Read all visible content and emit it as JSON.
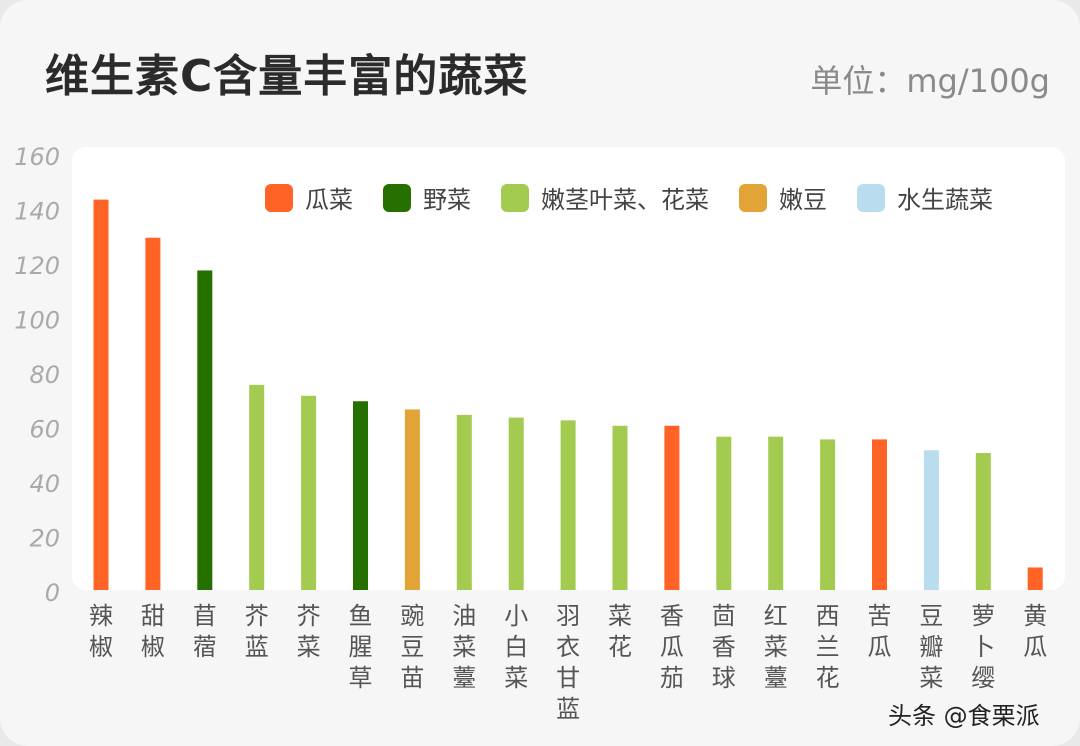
{
  "title": "维生素C含量丰富的蔬菜",
  "unit": "单位：mg/100g",
  "watermark": "头条 @食栗派",
  "chart_data": {
    "type": "bar",
    "title": "维生素C含量丰富的蔬菜",
    "ylabel": "单位：mg/100g",
    "ylim": [
      0,
      160
    ],
    "yticks": [
      0,
      20,
      40,
      60,
      80,
      100,
      120,
      140,
      160
    ],
    "grid": false,
    "legend_position": "top-right",
    "legend": [
      {
        "name": "瓜菜",
        "color": "#ff6325"
      },
      {
        "name": "野菜",
        "color": "#267000"
      },
      {
        "name": "嫩茎叶菜、花菜",
        "color": "#a3cb4f"
      },
      {
        "name": "嫩豆",
        "color": "#e2a436"
      },
      {
        "name": "水生蔬菜",
        "color": "#b9dcee"
      }
    ],
    "categories": [
      "辣椒",
      "甜椒",
      "苜蓿",
      "芥蓝",
      "芥菜",
      "鱼腥草",
      "豌豆苗",
      "油菜薹",
      "小白菜",
      "羽衣甘蓝",
      "菜花",
      "香瓜茄",
      "茴香球",
      "红菜薹",
      "西兰花",
      "苦瓜",
      "豆瓣菜",
      "萝卜缨",
      "黄瓜"
    ],
    "values": [
      144,
      130,
      118,
      76,
      72,
      70,
      67,
      65,
      64,
      63,
      61,
      61,
      57,
      57,
      56,
      56,
      52,
      51,
      9
    ],
    "groups": [
      0,
      0,
      1,
      2,
      2,
      1,
      3,
      2,
      2,
      2,
      2,
      0,
      2,
      2,
      2,
      0,
      4,
      2,
      0
    ]
  }
}
